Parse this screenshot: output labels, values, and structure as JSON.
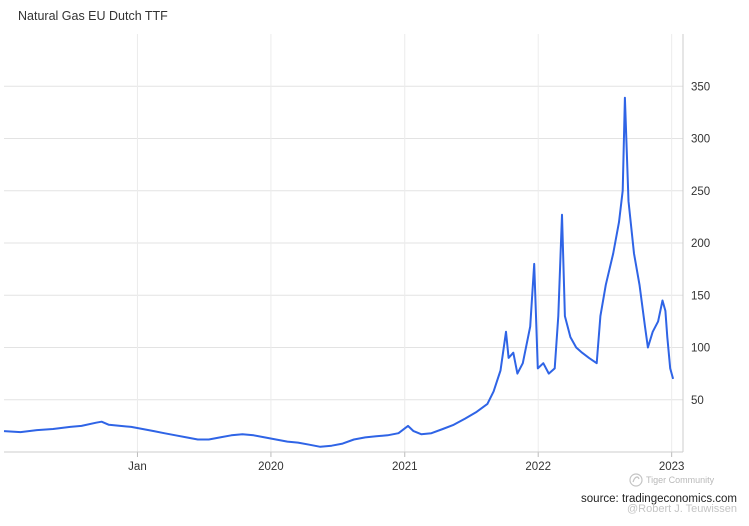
{
  "chart_data": {
    "type": "line",
    "title": "Natural Gas EU Dutch TTF",
    "xlabel": "",
    "ylabel": "",
    "xlim": [
      "2018-01-01",
      "2023-02-01"
    ],
    "ylim": [
      0,
      400
    ],
    "y_ticks": [
      50,
      100,
      150,
      200,
      250,
      300,
      350
    ],
    "x_ticks": [
      {
        "label": "Jan",
        "date": "2019-01-01"
      },
      {
        "label": "2020",
        "date": "2020-01-01"
      },
      {
        "label": "2021",
        "date": "2021-01-01"
      },
      {
        "label": "2022",
        "date": "2022-01-01"
      },
      {
        "label": "2023",
        "date": "2023-01-01"
      }
    ],
    "grid": true,
    "series": [
      {
        "color": "#2f64e6",
        "points": [
          [
            "2018-01-01",
            20
          ],
          [
            "2018-02-15",
            19
          ],
          [
            "2018-04-01",
            21
          ],
          [
            "2018-05-15",
            22
          ],
          [
            "2018-07-01",
            24
          ],
          [
            "2018-08-01",
            25
          ],
          [
            "2018-09-10",
            28
          ],
          [
            "2018-09-25",
            29
          ],
          [
            "2018-10-15",
            26
          ],
          [
            "2018-11-15",
            25
          ],
          [
            "2018-12-15",
            24
          ],
          [
            "2019-01-15",
            22
          ],
          [
            "2019-02-15",
            20
          ],
          [
            "2019-03-15",
            18
          ],
          [
            "2019-04-15",
            16
          ],
          [
            "2019-05-15",
            14
          ],
          [
            "2019-06-15",
            12
          ],
          [
            "2019-07-15",
            12
          ],
          [
            "2019-08-15",
            14
          ],
          [
            "2019-09-15",
            16
          ],
          [
            "2019-10-15",
            17
          ],
          [
            "2019-11-15",
            16
          ],
          [
            "2019-12-15",
            14
          ],
          [
            "2020-01-15",
            12
          ],
          [
            "2020-02-15",
            10
          ],
          [
            "2020-03-15",
            9
          ],
          [
            "2020-04-15",
            7
          ],
          [
            "2020-05-15",
            5
          ],
          [
            "2020-06-15",
            6
          ],
          [
            "2020-07-15",
            8
          ],
          [
            "2020-08-15",
            12
          ],
          [
            "2020-09-15",
            14
          ],
          [
            "2020-10-15",
            15
          ],
          [
            "2020-11-15",
            16
          ],
          [
            "2020-12-15",
            18
          ],
          [
            "2021-01-10",
            25
          ],
          [
            "2021-01-25",
            20
          ],
          [
            "2021-02-15",
            17
          ],
          [
            "2021-03-15",
            18
          ],
          [
            "2021-04-15",
            22
          ],
          [
            "2021-05-15",
            26
          ],
          [
            "2021-06-15",
            32
          ],
          [
            "2021-07-15",
            38
          ],
          [
            "2021-08-15",
            46
          ],
          [
            "2021-09-01",
            58
          ],
          [
            "2021-09-20",
            78
          ],
          [
            "2021-10-05",
            115
          ],
          [
            "2021-10-12",
            90
          ],
          [
            "2021-10-25",
            95
          ],
          [
            "2021-11-05",
            75
          ],
          [
            "2021-11-20",
            85
          ],
          [
            "2021-12-10",
            120
          ],
          [
            "2021-12-21",
            180
          ],
          [
            "2021-12-31",
            80
          ],
          [
            "2022-01-15",
            85
          ],
          [
            "2022-01-30",
            75
          ],
          [
            "2022-02-15",
            80
          ],
          [
            "2022-02-25",
            130
          ],
          [
            "2022-03-07",
            227
          ],
          [
            "2022-03-15",
            130
          ],
          [
            "2022-03-30",
            110
          ],
          [
            "2022-04-15",
            100
          ],
          [
            "2022-05-01",
            95
          ],
          [
            "2022-05-20",
            90
          ],
          [
            "2022-06-10",
            85
          ],
          [
            "2022-06-20",
            130
          ],
          [
            "2022-07-05",
            160
          ],
          [
            "2022-07-25",
            190
          ],
          [
            "2022-08-10",
            220
          ],
          [
            "2022-08-20",
            250
          ],
          [
            "2022-08-26",
            339
          ],
          [
            "2022-09-05",
            240
          ],
          [
            "2022-09-20",
            190
          ],
          [
            "2022-10-05",
            160
          ],
          [
            "2022-10-20",
            120
          ],
          [
            "2022-10-28",
            100
          ],
          [
            "2022-11-10",
            115
          ],
          [
            "2022-11-25",
            125
          ],
          [
            "2022-12-07",
            145
          ],
          [
            "2022-12-15",
            135
          ],
          [
            "2022-12-20",
            110
          ],
          [
            "2022-12-28",
            80
          ],
          [
            "2023-01-05",
            70
          ]
        ]
      }
    ]
  },
  "footer": {
    "source": "source: tradingeconomics.com",
    "watermark": "Tiger Community",
    "author": "@Robert J. Teuwissen"
  }
}
